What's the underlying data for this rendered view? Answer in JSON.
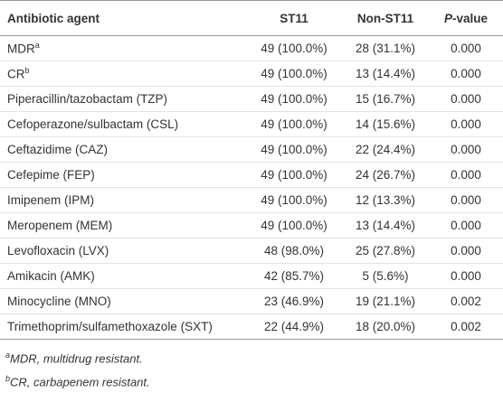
{
  "table": {
    "header": [
      "Antibiotic agent",
      "ST11",
      "Non-ST11",
      {
        "italic": "P",
        "text": "-value"
      }
    ],
    "rows": [
      {
        "agent": "MDR",
        "note": "a",
        "st11": "49 (100.0%)",
        "non_st11": "28 (31.1%)",
        "p": "0.000"
      },
      {
        "agent": "CR",
        "note": "b",
        "st11": "49 (100.0%)",
        "non_st11": "13 (14.4%)",
        "p": "0.000"
      },
      {
        "agent": "Piperacillin/tazobactam (TZP)",
        "st11": "49 (100.0%)",
        "non_st11": "15 (16.7%)",
        "p": "0.000"
      },
      {
        "agent": "Cefoperazone/sulbactam (CSL)",
        "st11": "49 (100.0%)",
        "non_st11": "14 (15.6%)",
        "p": "0.000"
      },
      {
        "agent": "Ceftazidime (CAZ)",
        "st11": "49 (100.0%)",
        "non_st11": "22 (24.4%)",
        "p": "0.000"
      },
      {
        "agent": "Cefepime (FEP)",
        "st11": "49 (100.0%)",
        "non_st11": "24 (26.7%)",
        "p": "0.000"
      },
      {
        "agent": "Imipenem (IPM)",
        "st11": "49 (100.0%)",
        "non_st11": "12 (13.3%)",
        "p": "0.000"
      },
      {
        "agent": "Meropenem (MEM)",
        "st11": "49 (100.0%)",
        "non_st11": "13 (14.4%)",
        "p": "0.000"
      },
      {
        "agent": "Levofloxacin (LVX)",
        "st11": "48 (98.0%)",
        "non_st11": "25 (27.8%)",
        "p": "0.000"
      },
      {
        "agent": "Amikacin (AMK)",
        "st11": "42 (85.7%)",
        "non_st11": "5 (5.6%)",
        "p": "0.000"
      },
      {
        "agent": "Minocycline (MNO)",
        "st11": "23 (46.9%)",
        "non_st11": "19 (21.1%)",
        "p": "0.002"
      },
      {
        "agent": "Trimethoprim/sulfamethoxazole (SXT)",
        "st11": "22 (44.9%)",
        "non_st11": "18 (20.0%)",
        "p": "0.002"
      }
    ],
    "footnotes": [
      {
        "mark": "a",
        "text": "MDR, multidrug resistant."
      },
      {
        "mark": "b",
        "text": "CR, carbapenem resistant."
      }
    ]
  }
}
